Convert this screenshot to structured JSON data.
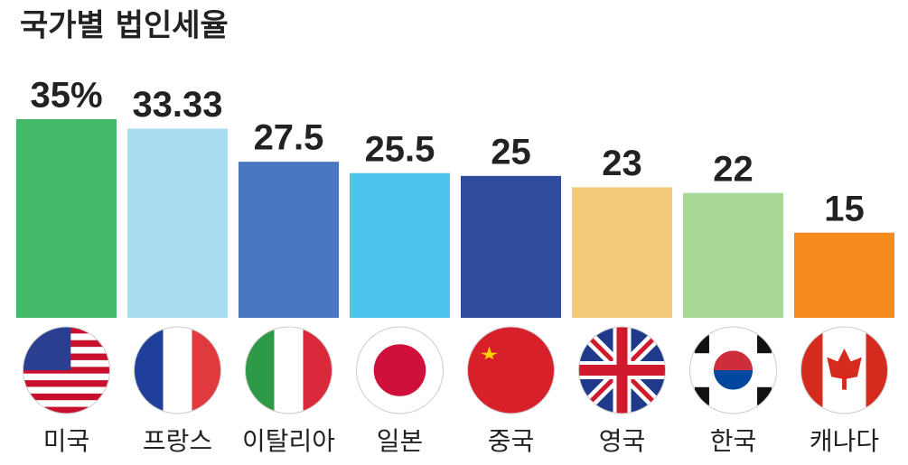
{
  "chart_data": {
    "type": "bar",
    "title": "국가별 법인세율",
    "categories": [
      "미국",
      "프랑스",
      "이탈리아",
      "일본",
      "중국",
      "영국",
      "한국",
      "캐나다"
    ],
    "values": [
      35,
      33.33,
      27.5,
      25.5,
      25,
      23,
      22,
      15
    ],
    "value_labels": [
      "35%",
      "33.33",
      "27.5",
      "25.5",
      "25",
      "23",
      "22",
      "15"
    ],
    "colors": [
      "#46b86a",
      "#a8dcf0",
      "#4a78c0",
      "#4cc4ee",
      "#2e4b9e",
      "#f5c97a",
      "#a8d898",
      "#f58a1f"
    ],
    "ylim": [
      0,
      35
    ]
  }
}
